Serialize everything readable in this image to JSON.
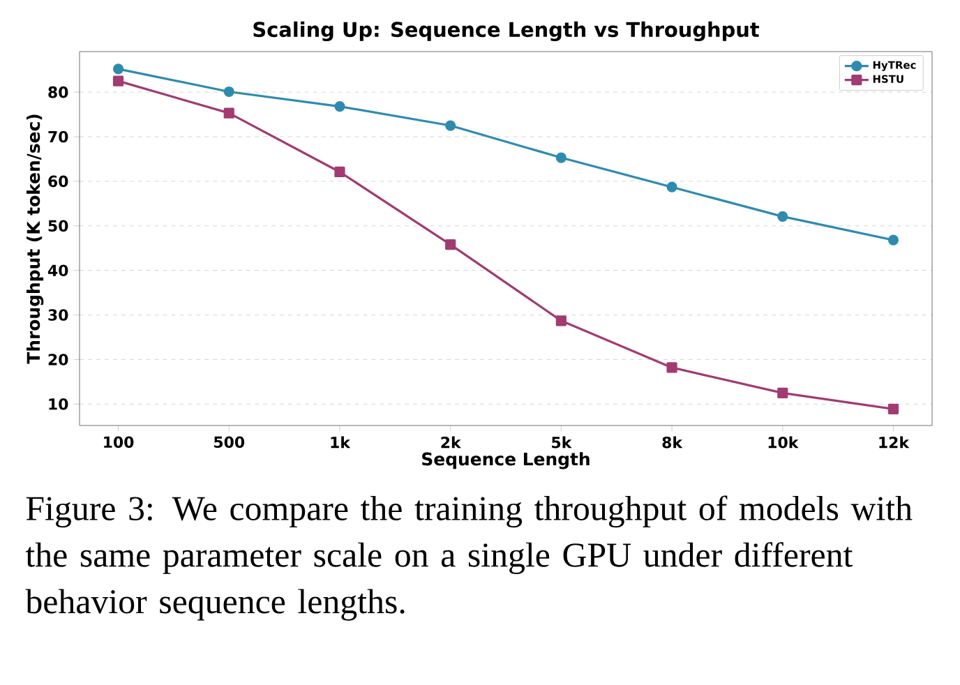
{
  "chart_data": {
    "type": "line",
    "title": "Scaling Up: Sequence Length vs Throughput",
    "xlabel": "Sequence Length",
    "ylabel": "Throughput (K token/sec)",
    "categories": [
      "100",
      "500",
      "1k",
      "2k",
      "5k",
      "8k",
      "10k",
      "12k"
    ],
    "series": [
      {
        "name": "HyTRec",
        "color": "#2e8bb0",
        "marker": "circle",
        "values": [
          85.2,
          80.1,
          76.8,
          72.5,
          65.3,
          58.7,
          52.1,
          46.8
        ]
      },
      {
        "name": "HSTU",
        "color": "#a23b72",
        "marker": "square",
        "values": [
          82.5,
          75.3,
          62.1,
          45.8,
          28.7,
          18.2,
          12.5,
          8.9
        ]
      }
    ],
    "ylim": [
      5.2,
      89.1
    ],
    "yticks": [
      10,
      20,
      30,
      40,
      50,
      60,
      70,
      80
    ],
    "grid": "y",
    "legend": "top right",
    "line_style": "solid",
    "annotations": [
      "Figure 3: We compare the training throughput of models with the same parameter scale on a single GPU under different behavior sequence lengths."
    ]
  }
}
